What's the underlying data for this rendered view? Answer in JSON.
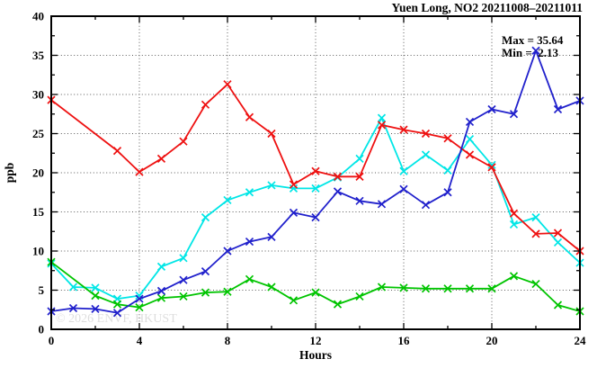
{
  "watermark": "© 2026 ENVF, HKUST",
  "annotations": {
    "max_label": "Max = 35.64",
    "min_label": "Min =  2.13"
  },
  "chart_data": {
    "type": "line",
    "title": "Yuen Long, NO2 20211008–20211011",
    "xlabel": "Hours",
    "ylabel": "ppb",
    "xlim": [
      0,
      24
    ],
    "ylim": [
      0,
      40
    ],
    "x_major_ticks": [
      0,
      4,
      8,
      12,
      16,
      20,
      24
    ],
    "x_minor_step": 2,
    "y_major_ticks": [
      0,
      5,
      10,
      15,
      20,
      25,
      30,
      35,
      40
    ],
    "y_minor_step": 2.5,
    "grid": true,
    "legend_position": "none",
    "max": 35.64,
    "min": 2.13,
    "x": [
      0,
      1,
      2,
      3,
      4,
      5,
      6,
      7,
      8,
      9,
      10,
      11,
      12,
      13,
      14,
      15,
      16,
      17,
      18,
      19,
      20,
      21,
      22,
      23,
      24
    ],
    "series": [
      {
        "name": "cyan",
        "color": "#00e6e6",
        "values": [
          8.4,
          5.4,
          5.3,
          3.9,
          4.3,
          8.0,
          9.1,
          14.3,
          16.5,
          17.5,
          18.4,
          18.0,
          18.0,
          19.4,
          21.8,
          27.0,
          20.2,
          22.3,
          20.3,
          24.3,
          21.0,
          13.4,
          14.3,
          11.1,
          8.5
        ]
      },
      {
        "name": "green",
        "color": "#00c400",
        "values": [
          8.6,
          null,
          4.3,
          3.2,
          2.8,
          4.0,
          4.2,
          4.7,
          4.8,
          6.4,
          5.4,
          3.7,
          4.7,
          3.2,
          4.2,
          5.4,
          5.3,
          5.2,
          5.2,
          5.2,
          5.2,
          6.8,
          5.8,
          3.1,
          2.3
        ]
      },
      {
        "name": "red",
        "color": "#ee1111",
        "values": [
          29.3,
          null,
          null,
          22.8,
          20.1,
          21.8,
          24.0,
          28.7,
          31.3,
          27.1,
          25.0,
          18.5,
          20.2,
          19.5,
          19.5,
          26.1,
          25.5,
          25.0,
          24.4,
          22.3,
          20.7,
          14.8,
          12.2,
          12.3,
          10.0
        ]
      },
      {
        "name": "blue",
        "color": "#2121cc",
        "values": [
          2.3,
          2.7,
          2.6,
          2.1,
          3.9,
          4.9,
          6.3,
          7.4,
          10.0,
          11.2,
          11.8,
          14.9,
          14.3,
          17.6,
          16.4,
          16.0,
          17.9,
          15.9,
          17.5,
          26.5,
          28.1,
          27.5,
          35.6,
          28.1,
          29.2
        ]
      }
    ]
  }
}
